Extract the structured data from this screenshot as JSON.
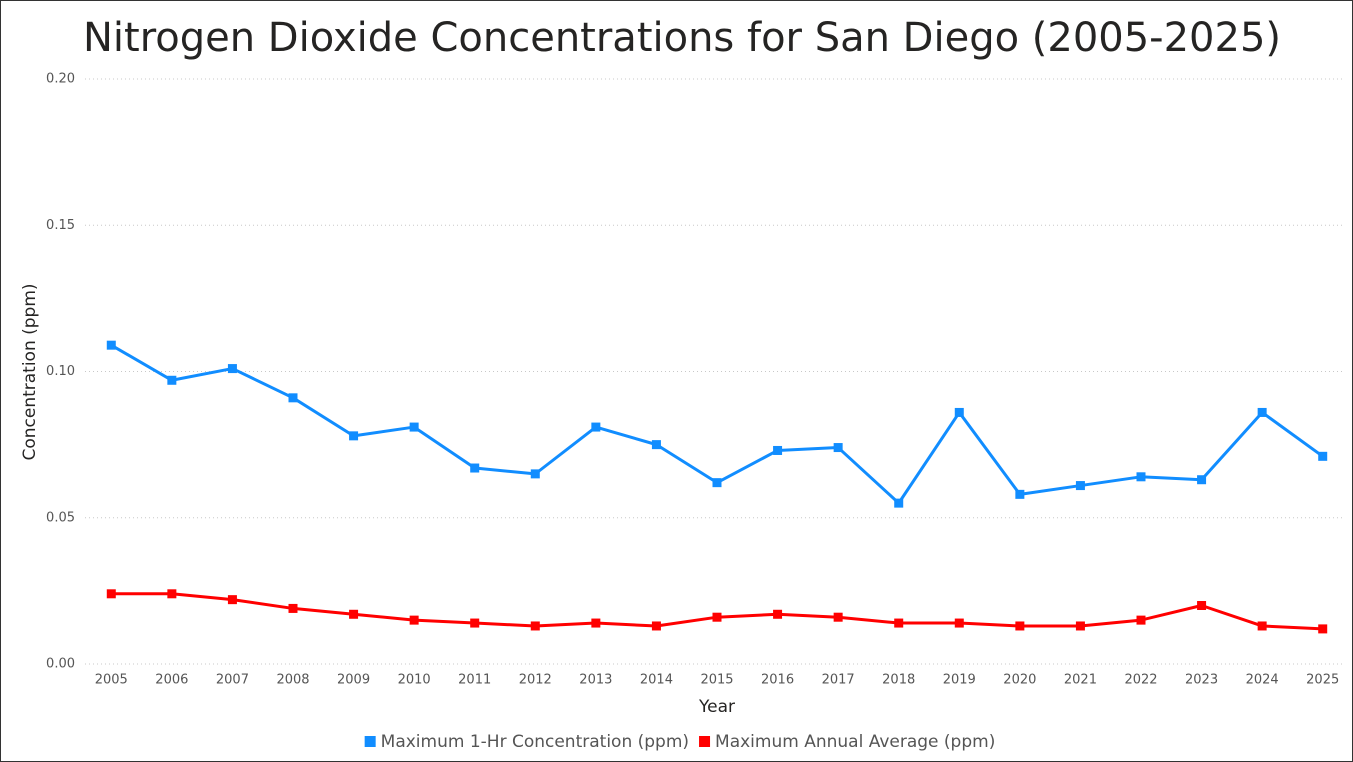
{
  "chart_data": {
    "type": "line",
    "title": "Nitrogen Dioxide Concentrations for San Diego (2005-2025)",
    "x_label": "Year",
    "y_label": "Concentration (ppm)",
    "categories": [
      "2005",
      "2006",
      "2007",
      "2008",
      "2009",
      "2010",
      "2011",
      "2012",
      "2013",
      "2014",
      "2015",
      "2016",
      "2017",
      "2018",
      "2019",
      "2020",
      "2021",
      "2022",
      "2023",
      "2024",
      "2025"
    ],
    "series": [
      {
        "name": "Maximum 1-Hr Concentration (ppm)",
        "color": "#118dff",
        "values": [
          0.109,
          0.097,
          0.101,
          0.091,
          0.078,
          0.081,
          0.067,
          0.065,
          0.081,
          0.075,
          0.062,
          0.073,
          0.074,
          0.055,
          0.086,
          0.058,
          0.061,
          0.064,
          0.063,
          0.086,
          0.071
        ]
      },
      {
        "name": "Maximum Annual Average (ppm)",
        "color": "#ff0000",
        "values": [
          0.024,
          0.024,
          0.022,
          0.019,
          0.017,
          0.015,
          0.014,
          0.013,
          0.014,
          0.013,
          0.016,
          0.017,
          0.016,
          0.014,
          0.014,
          0.013,
          0.013,
          0.015,
          0.02,
          0.013,
          0.012
        ]
      }
    ],
    "ylim": [
      0,
      0.2
    ],
    "yticks": [
      {
        "value": 0,
        "label": "0.00"
      },
      {
        "value": 0.05,
        "label": "0.05"
      },
      {
        "value": 0.1,
        "label": "0.10"
      },
      {
        "value": 0.15,
        "label": "0.15"
      },
      {
        "value": 0.2,
        "label": "0.20"
      }
    ],
    "grid": true,
    "legend": "bottom"
  }
}
